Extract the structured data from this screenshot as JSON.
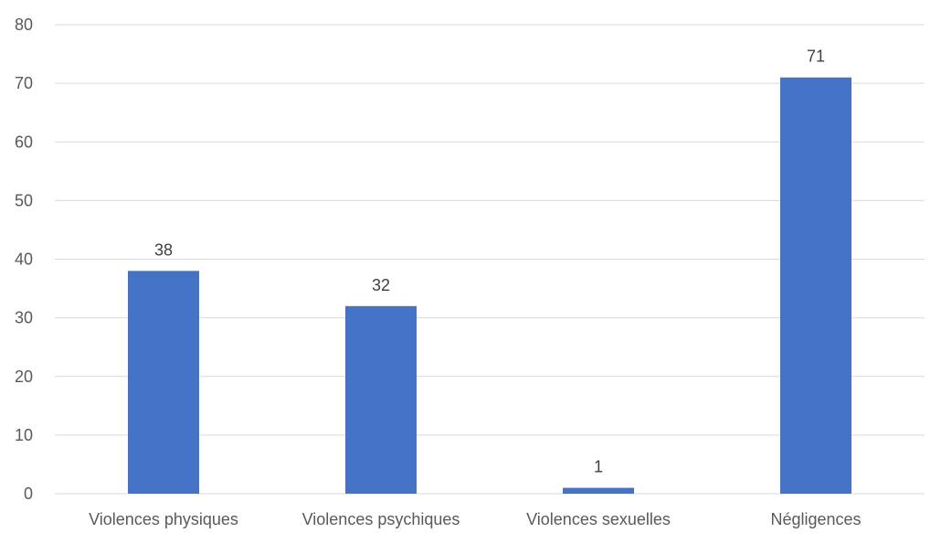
{
  "chart_data": {
    "type": "bar",
    "categories": [
      "Violences physiques",
      "Violences psychiques",
      "Violences sexuelles",
      "Négligences"
    ],
    "values": [
      38,
      32,
      1,
      71
    ],
    "data_labels": [
      "38",
      "32",
      "1",
      "71"
    ],
    "title": "",
    "xlabel": "",
    "ylabel": "",
    "ylim": [
      0,
      80
    ],
    "yticks": [
      0,
      10,
      20,
      30,
      40,
      50,
      60,
      70,
      80
    ],
    "grid": true,
    "legend": "none",
    "bar_color": "#4472c4",
    "grid_color": "#d9d9d9"
  }
}
